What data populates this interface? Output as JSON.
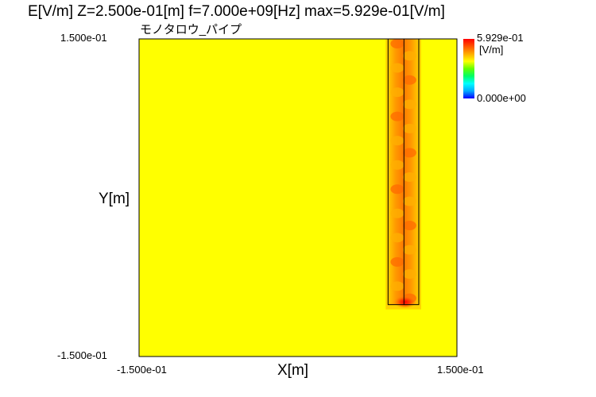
{
  "chart_data": {
    "type": "heatmap",
    "title": "E[V/m] Z=2.500e-01[m] f=7.000e+09[Hz] max=5.929e-01[V/m]",
    "subtitle": "モノタロウ_パイプ",
    "xlabel": "X[m]",
    "ylabel": "Y[m]",
    "xlim": [
      -0.15,
      0.15
    ],
    "ylim": [
      -0.15,
      0.15
    ],
    "x_tick_labels": [
      "-1.500e-01",
      "1.500e-01"
    ],
    "y_tick_labels": [
      "1.500e-01",
      "-1.500e-01"
    ],
    "colorbar": {
      "max_label": "5.929e-01",
      "unit_label": "[V/m]",
      "min_label": "0.000e+00",
      "min": 0.0,
      "max": 0.5929,
      "colors": [
        "#0000ff",
        "#00aaff",
        "#00ffff",
        "#00ff66",
        "#66ff00",
        "#ffff00",
        "#ffaa00",
        "#ff5500",
        "#ff0000"
      ]
    },
    "background_value": 0.37,
    "pipe": {
      "x_range": [
        0.085,
        0.114
      ],
      "y_range": [
        -0.101,
        0.15
      ],
      "center_x": 0.1,
      "hot_spot": {
        "x": 0.101,
        "y": -0.1,
        "value": 0.5929
      }
    }
  }
}
